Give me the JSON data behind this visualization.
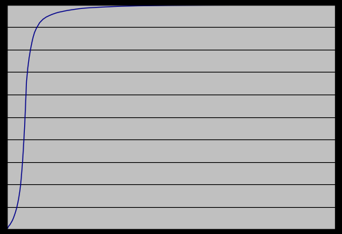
{
  "background_color": "#000000",
  "plot_bg_color": "#c0c0c0",
  "line_color": "#00008b",
  "line_width": 1.0,
  "xlim": [
    0,
    500
  ],
  "ylim": [
    0,
    1.0
  ],
  "ytick_count": 11,
  "grid_color": "#000000",
  "grid_linewidth": 0.8,
  "figsize": [
    4.96,
    3.39
  ],
  "dpi": 100,
  "curve_x": [
    0,
    1,
    2,
    3,
    4,
    5,
    6,
    7,
    8,
    9,
    10,
    11,
    12,
    13,
    14,
    15,
    16,
    17,
    18,
    19,
    20,
    21,
    22,
    23,
    24,
    25,
    26,
    27,
    28,
    29,
    30,
    32,
    34,
    36,
    38,
    40,
    42,
    45,
    48,
    50,
    55,
    60,
    65,
    70,
    75,
    80,
    90,
    100,
    110,
    120,
    130,
    150,
    175,
    200,
    250,
    300,
    400,
    500
  ],
  "curve_y": [
    0.0,
    0.005,
    0.01,
    0.015,
    0.018,
    0.022,
    0.027,
    0.032,
    0.037,
    0.043,
    0.05,
    0.058,
    0.066,
    0.075,
    0.085,
    0.095,
    0.108,
    0.122,
    0.138,
    0.155,
    0.175,
    0.2,
    0.23,
    0.265,
    0.305,
    0.35,
    0.4,
    0.455,
    0.52,
    0.59,
    0.66,
    0.72,
    0.765,
    0.8,
    0.83,
    0.855,
    0.875,
    0.895,
    0.91,
    0.92,
    0.935,
    0.945,
    0.952,
    0.958,
    0.963,
    0.967,
    0.973,
    0.978,
    0.982,
    0.985,
    0.987,
    0.99,
    0.993,
    0.995,
    0.997,
    0.998,
    0.999,
    1.0
  ]
}
